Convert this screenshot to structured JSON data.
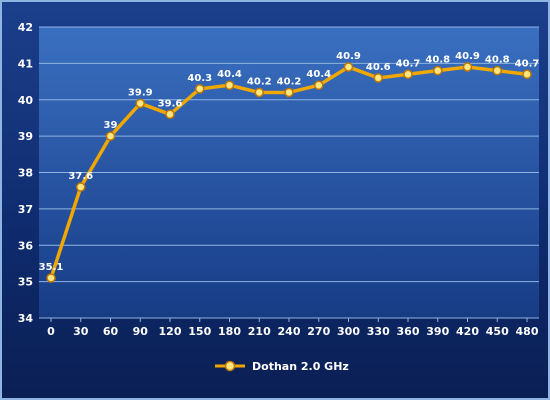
{
  "chart_data": {
    "type": "line",
    "title": "",
    "xlabel": "",
    "ylabel": "",
    "x": [
      0,
      30,
      60,
      90,
      120,
      150,
      180,
      210,
      240,
      270,
      300,
      330,
      360,
      390,
      420,
      450,
      480
    ],
    "series": [
      {
        "name": "Dothan 2.0 GHz",
        "values": [
          35.1,
          37.6,
          39,
          39.9,
          39.6,
          40.3,
          40.4,
          40.2,
          40.2,
          40.4,
          40.9,
          40.6,
          40.7,
          40.8,
          40.9,
          40.8,
          40.7
        ],
        "labels": [
          "35.1",
          "37.6",
          "39",
          "39.9",
          "39.6",
          "40.3",
          "40.4",
          "40.2",
          "40.2",
          "40.4",
          "40.9",
          "40.6",
          "40.7",
          "40.8",
          "40.9",
          "40.8",
          "40.7"
        ],
        "color": "#f0a800"
      }
    ],
    "ylim": [
      34,
      42
    ],
    "yticks": [
      34,
      35,
      36,
      37,
      38,
      39,
      40,
      41,
      42
    ],
    "grid": true,
    "legend": "bottom-center",
    "colors": {
      "plot_bg_top": "#3a6fc0",
      "plot_bg_bottom": "#173c86",
      "grid": "#8fb4e2",
      "line": "#f0a800",
      "marker_fill": "#ffe680"
    }
  }
}
